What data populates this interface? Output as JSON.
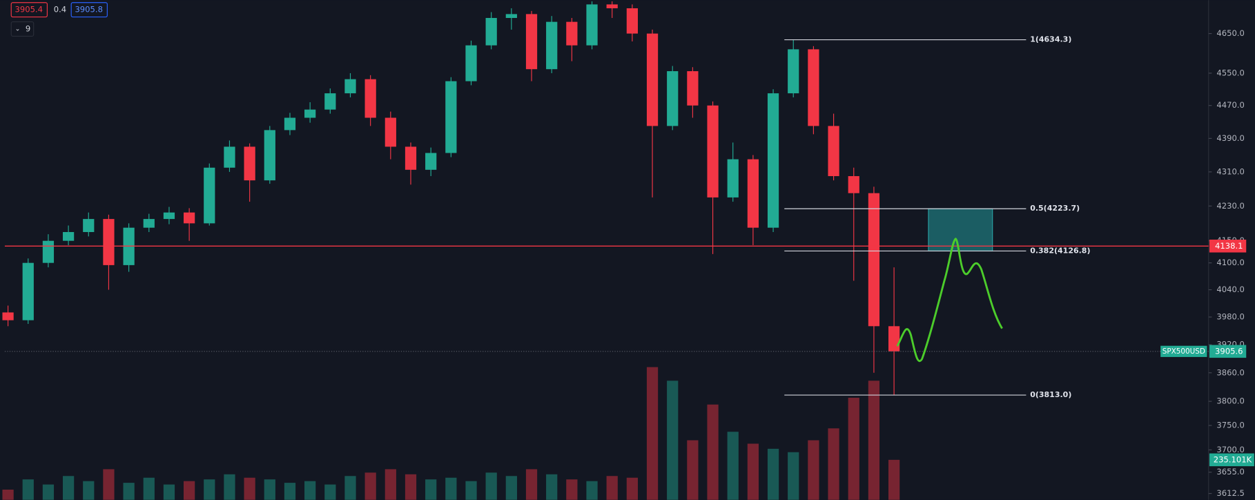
{
  "header": {
    "bid": "3905.4",
    "spread": "0.4",
    "ask": "3905.8",
    "interval": "9"
  },
  "chart_data": {
    "type": "candlestick",
    "symbol": "SPX500USD",
    "log_scale": true,
    "ylim": [
      3600,
      4736
    ],
    "yticks": [
      3612.5,
      {
        "value": 3655,
        "label": "3655.0"
      },
      {
        "value": 3700,
        "label": "3700.0"
      },
      {
        "value": 3750,
        "label": "3750.0"
      },
      {
        "value": 3800,
        "label": "3800.0"
      },
      {
        "value": 3860,
        "label": "3860.0"
      },
      {
        "value": 3920,
        "label": "3920.0"
      },
      {
        "value": 3980,
        "label": "3980.0"
      },
      {
        "value": 4040,
        "label": "4040.0"
      },
      {
        "value": 4100,
        "label": "4100.0"
      },
      {
        "value": 4150,
        "label": "4150.0"
      },
      {
        "value": 4230,
        "label": "4230.0"
      },
      {
        "value": 4310,
        "label": "4310.0"
      },
      {
        "value": 4390,
        "label": "4390.0"
      },
      {
        "value": 4470,
        "label": "4470.0"
      },
      {
        "value": 4550,
        "label": "4550.0"
      },
      {
        "value": 4650,
        "label": "4650.0"
      }
    ],
    "up_color": "#22ab94",
    "down_color": "#f23645",
    "ohlc": [
      [
        3990,
        4005,
        3960,
        3973
      ],
      [
        3973,
        4110,
        3965,
        4100
      ],
      [
        4100,
        4165,
        4090,
        4150
      ],
      [
        4150,
        4185,
        4140,
        4170
      ],
      [
        4170,
        4215,
        4160,
        4200
      ],
      [
        4200,
        4210,
        4040,
        4095
      ],
      [
        4095,
        4190,
        4080,
        4180
      ],
      [
        4180,
        4212,
        4170,
        4200
      ],
      [
        4200,
        4228,
        4188,
        4215
      ],
      [
        4215,
        4225,
        4150,
        4190
      ],
      [
        4190,
        4330,
        4185,
        4320
      ],
      [
        4320,
        4385,
        4310,
        4370
      ],
      [
        4370,
        4378,
        4240,
        4290
      ],
      [
        4290,
        4420,
        4282,
        4410
      ],
      [
        4410,
        4452,
        4398,
        4440
      ],
      [
        4440,
        4478,
        4428,
        4460
      ],
      [
        4460,
        4512,
        4450,
        4500
      ],
      [
        4500,
        4550,
        4490,
        4535
      ],
      [
        4535,
        4545,
        4420,
        4440
      ],
      [
        4440,
        4455,
        4340,
        4370
      ],
      [
        4370,
        4380,
        4280,
        4315
      ],
      [
        4315,
        4368,
        4300,
        4355
      ],
      [
        4355,
        4540,
        4345,
        4530
      ],
      [
        4530,
        4632,
        4520,
        4620
      ],
      [
        4620,
        4705,
        4610,
        4690
      ],
      [
        4690,
        4715,
        4660,
        4700
      ],
      [
        4700,
        4708,
        4530,
        4560
      ],
      [
        4560,
        4695,
        4550,
        4680
      ],
      [
        4680,
        4690,
        4580,
        4620
      ],
      [
        4620,
        4733,
        4610,
        4725
      ],
      [
        4725,
        4733,
        4690,
        4715
      ],
      [
        4715,
        4725,
        4630,
        4650
      ],
      [
        4650,
        4660,
        4250,
        4420
      ],
      [
        4420,
        4568,
        4410,
        4555
      ],
      [
        4555,
        4565,
        4440,
        4470
      ],
      [
        4470,
        4480,
        4120,
        4250
      ],
      [
        4250,
        4380,
        4240,
        4340
      ],
      [
        4340,
        4350,
        4140,
        4180
      ],
      [
        4180,
        4510,
        4170,
        4500
      ],
      [
        4500,
        4634.3,
        4490,
        4610
      ],
      [
        4610,
        4618,
        4400,
        4420
      ],
      [
        4420,
        4450,
        4290,
        4300
      ],
      [
        4300,
        4320,
        4060,
        4260
      ],
      [
        4260,
        4275,
        3860,
        3960
      ],
      [
        3960,
        4090,
        3813,
        3905.6
      ]
    ],
    "volume": [
      60,
      120,
      90,
      140,
      110,
      180,
      100,
      130,
      90,
      110,
      120,
      150,
      130,
      120,
      100,
      110,
      90,
      140,
      160,
      180,
      150,
      120,
      130,
      110,
      160,
      140,
      180,
      150,
      120,
      110,
      140,
      130,
      780,
      700,
      350,
      560,
      400,
      330,
      300,
      280,
      350,
      420,
      600,
      700,
      235.101
    ],
    "volume_lim": [
      0,
      800
    ],
    "volume_last_label": "235.101K",
    "horizontal_line": {
      "value": 4138.1,
      "label": "4138.1",
      "color": "#f23645"
    },
    "last_price": {
      "value": 3905.6,
      "label": "3905.6"
    },
    "fib_levels": [
      {
        "value": 4634.3,
        "label": "1(4634.3)"
      },
      {
        "value": 4223.7,
        "label": "0.5(4223.7)"
      },
      {
        "value": 4126.8,
        "label": "0.382(4126.8)"
      },
      {
        "value": 3813.0,
        "label": "0(3813.0)"
      }
    ],
    "target_zone": {
      "top": 4223.7,
      "bottom": 4126.8,
      "color": "#1e6f74"
    }
  }
}
